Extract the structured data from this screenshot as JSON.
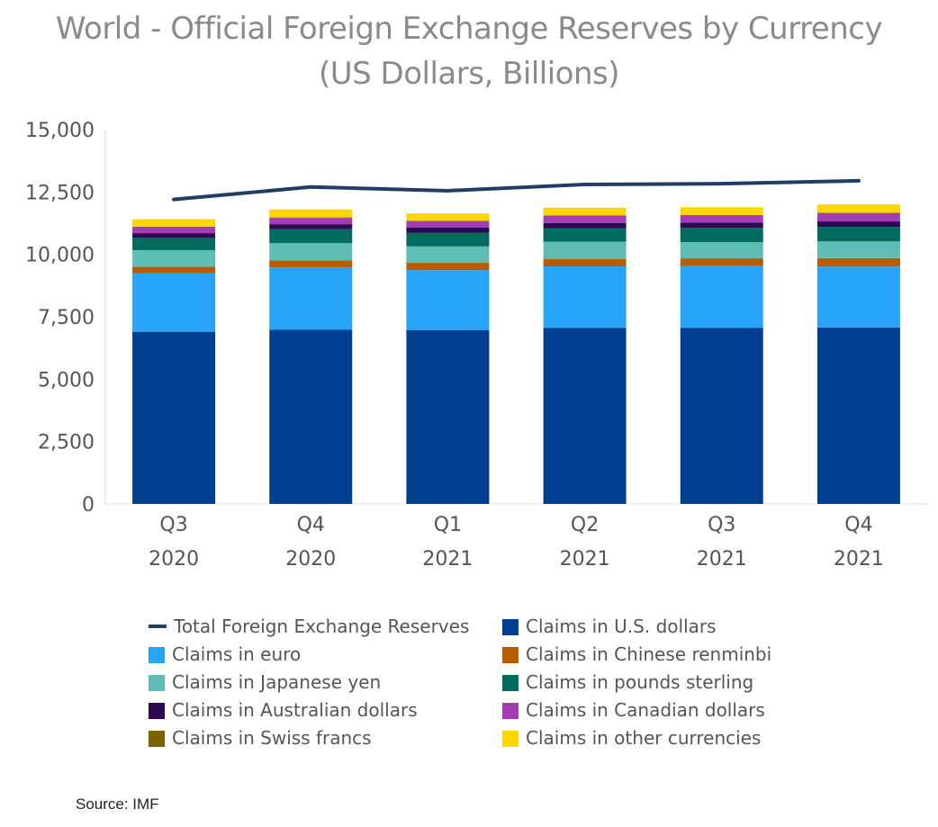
{
  "chart_data": {
    "type": "bar",
    "stacked": true,
    "title": "World - Official Foreign Exchange Reserves by Currency",
    "subtitle": "(US Dollars, Billions)",
    "categories": [
      [
        "Q3",
        "2020"
      ],
      [
        "Q4",
        "2020"
      ],
      [
        "Q1",
        "2021"
      ],
      [
        "Q2",
        "2021"
      ],
      [
        "Q3",
        "2021"
      ],
      [
        "Q4",
        "2021"
      ]
    ],
    "ylim": [
      0,
      15000
    ],
    "yticks": [
      "0",
      "2,500",
      "5,000",
      "7,500",
      "10,000",
      "12,500",
      "15,000"
    ],
    "ytick_values": [
      0,
      2500,
      5000,
      7500,
      10000,
      12500,
      15000
    ],
    "series": [
      {
        "name": "Claims in U.S. dollars",
        "color": "#003f8f",
        "values": [
          6900,
          6980,
          6970,
          7060,
          7060,
          7070
        ]
      },
      {
        "name": "Claims in euro",
        "color": "#27a4f8",
        "values": [
          2350,
          2500,
          2400,
          2460,
          2470,
          2440
        ]
      },
      {
        "name": "Claims in Chinese renminbi",
        "color": "#b85c00",
        "values": [
          250,
          280,
          290,
          300,
          310,
          340
        ]
      },
      {
        "name": "Claims in Japanese yen",
        "color": "#5ebdb4",
        "values": [
          670,
          690,
          660,
          690,
          650,
          670
        ]
      },
      {
        "name": "Claims in pounds sterling",
        "color": "#006b5e",
        "values": [
          490,
          560,
          550,
          540,
          570,
          580
        ]
      },
      {
        "name": "Claims in Australian dollars",
        "color": "#2e0854",
        "values": [
          190,
          200,
          200,
          210,
          210,
          220
        ]
      },
      {
        "name": "Claims in Canadian dollars",
        "color": "#a43cb4",
        "values": [
          240,
          250,
          250,
          280,
          290,
          330
        ]
      },
      {
        "name": "Claims in Swiss francs",
        "color": "#7a6200",
        "values": [
          20,
          20,
          20,
          20,
          20,
          20
        ]
      },
      {
        "name": "Claims in other currencies",
        "color": "#ffd700",
        "values": [
          300,
          320,
          300,
          310,
          310,
          330
        ]
      }
    ],
    "line": {
      "name": "Total Foreign Exchange Reserves",
      "color": "#1f3d66",
      "values": [
        12200,
        12700,
        12550,
        12800,
        12830,
        12950
      ]
    },
    "legend": {
      "position": "bottom",
      "entries": [
        "Total Foreign Exchange Reserves",
        "Claims in U.S. dollars",
        "Claims in euro",
        "Claims in Chinese renminbi",
        "Claims in Japanese yen",
        "Claims in pounds sterling",
        "Claims in Australian dollars",
        "Claims in Canadian dollars",
        "Claims in Swiss francs",
        "Claims in other currencies"
      ]
    },
    "grid": false
  },
  "source": "Source: IMF"
}
